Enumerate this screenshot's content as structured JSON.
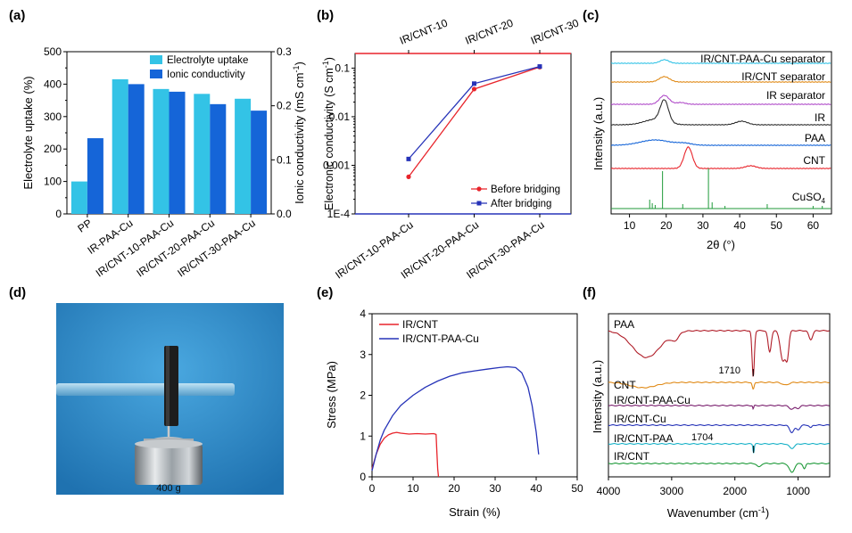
{
  "panels": {
    "a": "(a)",
    "b": "(b)",
    "c": "(c)",
    "d": "(d)",
    "e": "(e)",
    "f": "(f)"
  },
  "colors": {
    "cyan": "#33c3e6",
    "blue": "#1565d8",
    "red": "#e8242b",
    "navy": "#2633b8",
    "orange": "#e08a17",
    "purple": "#b04cc9",
    "black": "#2e2e2e",
    "green": "#1f9a3a",
    "maroon": "#b01d28",
    "darkpurple": "#7a1f6e",
    "ftir_cyan": "#1ab2c8",
    "photo_bg": "#2f8fce"
  },
  "chart_data": [
    {
      "id": "a",
      "type": "bar",
      "xlabel": "",
      "ylabel": "Electrolyte uptake (%)",
      "ylabel2_prefix": "Ionic conductivity (mS cm",
      "ylabel2_sup": "-1",
      "ylabel2_suffix": ")",
      "ylim": [
        0,
        500
      ],
      "ylim2": [
        0,
        0.3
      ],
      "yticks": [
        "0",
        "100",
        "200",
        "300",
        "400",
        "500"
      ],
      "yticks2": [
        "0.0",
        "0.1",
        "0.2",
        "0.3"
      ],
      "categories": [
        "PP",
        "IR-PAA-Cu",
        "IR/CNT-10-PAA-Cu",
        "IR/CNT-20-PAA-Cu",
        "IR/CNT-30-PAA-Cu"
      ],
      "series": [
        {
          "name": "Electrolyte uptake",
          "axis": "left",
          "values": [
            100,
            415,
            385,
            370,
            355
          ]
        },
        {
          "name": "Ionic conductivity",
          "axis": "right",
          "values": [
            0.14,
            0.24,
            0.226,
            0.203,
            0.191
          ]
        }
      ],
      "legend": "top-right"
    },
    {
      "id": "b",
      "type": "line",
      "scale": "log",
      "xlabel": "",
      "ylabel_prefix": "Electronic conductivity (S cm",
      "ylabel_sup": "-1",
      "ylabel_suffix": ")",
      "ylim": [
        0.0001,
        0.2
      ],
      "yticks": [
        "1E-4",
        "0.001",
        "0.01",
        "0.1"
      ],
      "categories": [
        "IR/CNT-10-PAA-Cu",
        "IR/CNT-20-PAA-Cu",
        "IR/CNT-30-PAA-Cu"
      ],
      "top_categories": [
        "IR/CNT-10",
        "IR/CNT-20",
        "IR/CNT-30"
      ],
      "series": [
        {
          "name": "Before bridging",
          "values": [
            0.00058,
            0.037,
            0.105
          ]
        },
        {
          "name": "After bridging",
          "values": [
            0.00135,
            0.048,
            0.108
          ]
        }
      ],
      "legend": "bottom-right"
    },
    {
      "id": "c",
      "type": "line",
      "xlabel": "2θ (°)",
      "ylabel": "Intensity (a.u.)",
      "xlim": [
        5,
        65
      ],
      "xticks": [
        "10",
        "20",
        "30",
        "40",
        "50",
        "60"
      ],
      "series": [
        {
          "name": "IR/CNT-PAA-Cu separator",
          "peaks": [
            19.5
          ]
        },
        {
          "name": "IR/CNT separator",
          "peaks": [
            19.5
          ]
        },
        {
          "name": "IR separator",
          "peaks": [
            19.5
          ]
        },
        {
          "name": "IR",
          "peaks": [
            19.5,
            40
          ]
        },
        {
          "name": "PAA",
          "peaks": [
            17
          ]
        },
        {
          "name": "CNT",
          "peaks": [
            26,
            43
          ]
        },
        {
          "name": "CuSO",
          "sub": "4",
          "peaks": [
            15.5,
            16.2,
            19,
            24.5,
            31.5,
            32.5,
            47.5,
            60
          ]
        }
      ]
    },
    {
      "id": "e",
      "type": "line",
      "xlabel": "Strain (%)",
      "ylabel": "Stress (MPa)",
      "xlim": [
        0,
        50
      ],
      "ylim": [
        0,
        4
      ],
      "xticks": [
        "0",
        "10",
        "20",
        "30",
        "40",
        "50"
      ],
      "yticks": [
        "0",
        "1",
        "2",
        "3",
        "4"
      ],
      "series": [
        {
          "name": "IR/CNT",
          "x": [
            0,
            1,
            2,
            3,
            4,
            5,
            6,
            7,
            9,
            11,
            13,
            15,
            15.6,
            15.8,
            16,
            16.2
          ],
          "y": [
            0.2,
            0.55,
            0.8,
            0.95,
            1.03,
            1.07,
            1.09,
            1.07,
            1.05,
            1.06,
            1.05,
            1.06,
            1.04,
            0.6,
            0.2,
            0.0
          ]
        },
        {
          "name": "IR/CNT-PAA-Cu",
          "x": [
            0,
            1,
            2,
            3,
            5,
            7,
            10,
            13,
            16,
            19,
            22,
            25,
            28,
            31,
            33,
            35,
            36.5,
            38,
            39,
            40,
            40.6
          ],
          "y": [
            0.15,
            0.55,
            0.9,
            1.15,
            1.5,
            1.75,
            2.0,
            2.2,
            2.35,
            2.47,
            2.55,
            2.6,
            2.64,
            2.68,
            2.7,
            2.68,
            2.55,
            2.2,
            1.75,
            1.1,
            0.55
          ]
        }
      ],
      "legend": "top-left"
    },
    {
      "id": "f",
      "type": "line",
      "xlabel_prefix": "Wavenumber (cm",
      "xlabel_sup": "-1",
      "xlabel_suffix": ")",
      "ylabel": "Intensity (a.u.)",
      "xlim": [
        4000,
        500
      ],
      "xticks": [
        "4000",
        "3000",
        "2000",
        "1000"
      ],
      "series": [
        {
          "name": "PAA",
          "annotation": "1710"
        },
        {
          "name": "CNT"
        },
        {
          "name": "IR/CNT-PAA-Cu"
        },
        {
          "name": "IR/CNT-Cu"
        },
        {
          "name": "IR/CNT-PAA",
          "annotation": "1704"
        },
        {
          "name": "IR/CNT"
        }
      ]
    }
  ],
  "photo": {
    "weight_label": "400 g"
  }
}
